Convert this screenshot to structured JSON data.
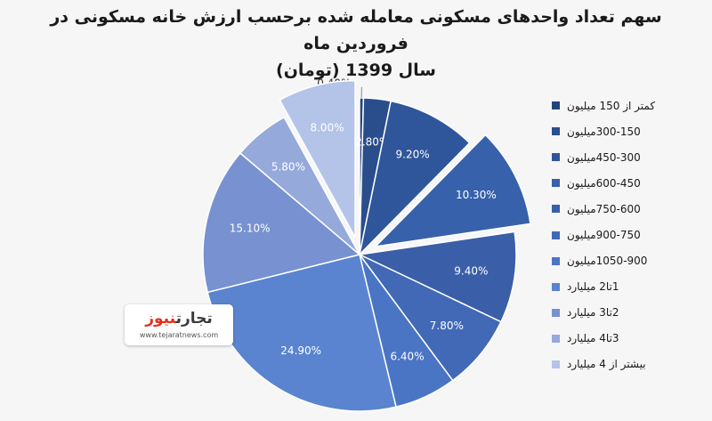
{
  "chart_data": {
    "type": "pie",
    "title_lines": [
      "سهم تعداد واحدهای مسکونی معامله شده برحسب ارزش خانه مسکونی در فروردین ماه",
      "سال 1399 (تومان)"
    ],
    "categories": [
      "کمتر از 150 میلیون",
      "300-150میلیون",
      "450-300میلیون",
      "600-450میلیون",
      "750-600میلیون",
      "900-750میلیون",
      "1050-900میلیون",
      "1تا2 میلیارد",
      "2تا3 میلیارد",
      "3تا4 میلیارد",
      "بیشتر از 4 میلیارد"
    ],
    "values": [
      0.4,
      2.8,
      9.2,
      10.3,
      9.4,
      7.8,
      6.4,
      24.9,
      15.1,
      5.8,
      8.0
    ],
    "data_labels": [
      "0.40%",
      "2.80%",
      "9.20%",
      "10.30%",
      "9.40%",
      "7.80%",
      "6.40%",
      "24.90%",
      "15.10%",
      "5.80%",
      "8.00%"
    ],
    "exploded": [
      false,
      false,
      false,
      true,
      false,
      false,
      false,
      false,
      false,
      false,
      true
    ],
    "colors": [
      "#23437d",
      "#2a4d8c",
      "#2f569b",
      "#3761aa",
      "#3a5ea8",
      "#4169b6",
      "#4a75c4",
      "#5a84cf",
      "#7791d1",
      "#96a9db",
      "#b4c3e8"
    ],
    "legend_position": "right",
    "label_color": "#ffffff",
    "outside_label_color": "#333333"
  },
  "watermark": {
    "brand_part1": "تجارت",
    "brand_part2": "نیوز",
    "url": "www.tejaratnews.com"
  }
}
